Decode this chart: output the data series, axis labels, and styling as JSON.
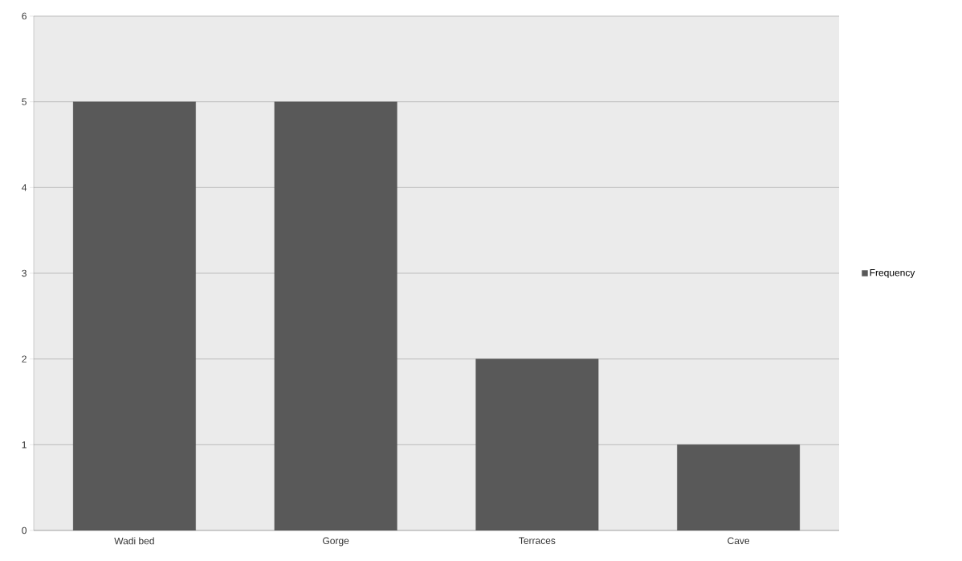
{
  "chart_data": {
    "type": "bar",
    "categories": [
      "Wadi bed",
      "Gorge",
      "Terraces",
      "Cave"
    ],
    "series": [
      {
        "name": "Frequency",
        "color": "#595959",
        "values": [
          5,
          5,
          2,
          1
        ]
      }
    ],
    "ylim": [
      0,
      6
    ],
    "yticks": [
      0,
      1,
      2,
      3,
      4,
      5,
      6
    ],
    "grid": "y",
    "legend": "right"
  }
}
